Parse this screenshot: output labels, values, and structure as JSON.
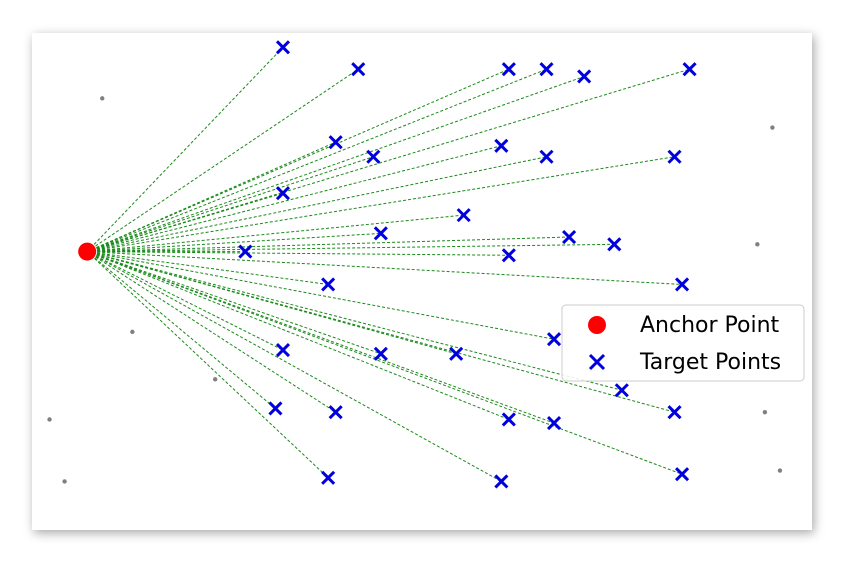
{
  "chart_data": {
    "type": "scatter",
    "title": "",
    "xlabel": "",
    "ylabel": "",
    "xlim": [
      0,
      10
    ],
    "ylim": [
      0,
      6.4
    ],
    "grid": false,
    "legend_placement": "right",
    "colors": {
      "anchor": "#ff0000",
      "target": "#0000dd",
      "line": "#1a8a1a",
      "noise": "#808080"
    },
    "anchor": {
      "name": "Anchor Point",
      "x": 0.6,
      "y": 3.5
    },
    "targets": {
      "name": "Target Points",
      "points": [
        [
          3.2,
          6.3
        ],
        [
          4.2,
          6.0
        ],
        [
          6.2,
          6.0
        ],
        [
          6.7,
          6.0
        ],
        [
          7.2,
          5.9
        ],
        [
          8.6,
          6.0
        ],
        [
          3.9,
          5.0
        ],
        [
          4.4,
          4.8
        ],
        [
          6.1,
          4.95
        ],
        [
          6.7,
          4.8
        ],
        [
          8.4,
          4.8
        ],
        [
          3.2,
          4.3
        ],
        [
          5.6,
          4.0
        ],
        [
          4.5,
          3.75
        ],
        [
          7.0,
          3.7
        ],
        [
          7.6,
          3.6
        ],
        [
          2.7,
          3.5
        ],
        [
          6.2,
          3.45
        ],
        [
          3.8,
          3.05
        ],
        [
          8.5,
          3.05
        ],
        [
          6.8,
          2.3
        ],
        [
          3.2,
          2.15
        ],
        [
          4.5,
          2.1
        ],
        [
          5.5,
          2.1
        ],
        [
          7.7,
          1.6
        ],
        [
          3.1,
          1.35
        ],
        [
          3.9,
          1.3
        ],
        [
          6.2,
          1.2
        ],
        [
          6.8,
          1.15
        ],
        [
          8.4,
          1.3
        ],
        [
          3.8,
          0.4
        ],
        [
          6.1,
          0.35
        ],
        [
          8.5,
          0.45
        ]
      ]
    },
    "noise_points": [
      [
        0.8,
        5.6
      ],
      [
        9.7,
        5.2
      ],
      [
        9.5,
        3.6
      ],
      [
        1.2,
        2.4
      ],
      [
        2.3,
        1.75
      ],
      [
        0.1,
        1.2
      ],
      [
        9.6,
        1.3
      ],
      [
        0.3,
        0.35
      ],
      [
        9.8,
        0.5
      ]
    ]
  }
}
